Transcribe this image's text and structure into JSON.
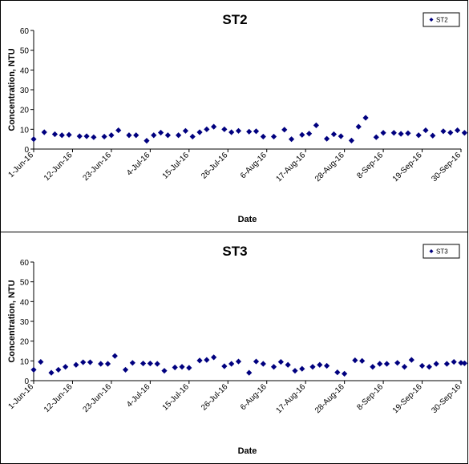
{
  "chart_data": [
    {
      "type": "scatter",
      "title": "ST2",
      "xlabel": "Date",
      "ylabel": "Concentration, NTU",
      "ylim": [
        0,
        60
      ],
      "yticks": [
        0,
        10,
        20,
        30,
        40,
        50,
        60
      ],
      "xlim": [
        "2016-06-01",
        "2016-09-30"
      ],
      "xtick_labels": [
        "1-Jun-16",
        "12-Jun-16",
        "23-Jun-16",
        "4-Jul-16",
        "15-Jul-16",
        "26-Jul-16",
        "6-Aug-16",
        "17-Aug-16",
        "28-Aug-16",
        "8-Sep-16",
        "19-Sep-16",
        "30-Sep-16"
      ],
      "xtick_dates": [
        "2016-06-01",
        "2016-06-12",
        "2016-06-23",
        "2016-07-04",
        "2016-07-15",
        "2016-07-26",
        "2016-08-06",
        "2016-08-17",
        "2016-08-28",
        "2016-09-08",
        "2016-09-19",
        "2016-09-30"
      ],
      "legend": "top-right",
      "grid": false,
      "marker_color": "#00007F",
      "series": [
        {
          "name": "ST2",
          "x": [
            "2016-06-01",
            "2016-06-04",
            "2016-06-07",
            "2016-06-09",
            "2016-06-11",
            "2016-06-14",
            "2016-06-16",
            "2016-06-18",
            "2016-06-21",
            "2016-06-23",
            "2016-06-25",
            "2016-06-28",
            "2016-06-30",
            "2016-07-03",
            "2016-07-05",
            "2016-07-07",
            "2016-07-09",
            "2016-07-12",
            "2016-07-14",
            "2016-07-16",
            "2016-07-18",
            "2016-07-20",
            "2016-07-22",
            "2016-07-25",
            "2016-07-27",
            "2016-07-29",
            "2016-08-01",
            "2016-08-03",
            "2016-08-05",
            "2016-08-08",
            "2016-08-11",
            "2016-08-13",
            "2016-08-16",
            "2016-08-18",
            "2016-08-20",
            "2016-08-23",
            "2016-08-25",
            "2016-08-27",
            "2016-08-30",
            "2016-09-01",
            "2016-09-03",
            "2016-09-06",
            "2016-09-08",
            "2016-09-11",
            "2016-09-13",
            "2016-09-15",
            "2016-09-18",
            "2016-09-20",
            "2016-09-22",
            "2016-09-25",
            "2016-09-27",
            "2016-09-29",
            "2016-10-01"
          ],
          "y": [
            5,
            8.5,
            7.5,
            7,
            7.2,
            6.5,
            6.5,
            6,
            6.3,
            7,
            9.5,
            7,
            7,
            4.2,
            7,
            8.3,
            7,
            7,
            9.2,
            6.3,
            8.5,
            10,
            11.3,
            10,
            8.5,
            9.2,
            8.8,
            9,
            6.3,
            6.3,
            9.8,
            5,
            7.2,
            7.8,
            12,
            5.2,
            7.5,
            6.5,
            4.3,
            11.3,
            15.8,
            6,
            8.2,
            8.2,
            7.7,
            8,
            7,
            9.5,
            6.8,
            9,
            8.3,
            9.5,
            8.2
          ]
        }
      ]
    },
    {
      "type": "scatter",
      "title": "ST3",
      "xlabel": "Date",
      "ylabel": "Concentration, NTU",
      "ylim": [
        0,
        60
      ],
      "yticks": [
        0,
        10,
        20,
        30,
        40,
        50,
        60
      ],
      "xlim": [
        "2016-06-01",
        "2016-09-30"
      ],
      "xtick_labels": [
        "1-Jun-16",
        "12-Jun-16",
        "23-Jun-16",
        "4-Jul-16",
        "15-Jul-16",
        "26-Jul-16",
        "6-Aug-16",
        "17-Aug-16",
        "28-Aug-16",
        "8-Sep-16",
        "19-Sep-16",
        "30-Sep-16"
      ],
      "xtick_dates": [
        "2016-06-01",
        "2016-06-12",
        "2016-06-23",
        "2016-07-04",
        "2016-07-15",
        "2016-07-26",
        "2016-08-06",
        "2016-08-17",
        "2016-08-28",
        "2016-09-08",
        "2016-09-19",
        "2016-09-30"
      ],
      "legend": "top-right",
      "grid": false,
      "marker_color": "#00007F",
      "series": [
        {
          "name": "ST3",
          "x": [
            "2016-06-01",
            "2016-06-03",
            "2016-06-06",
            "2016-06-08",
            "2016-06-10",
            "2016-06-13",
            "2016-06-15",
            "2016-06-17",
            "2016-06-20",
            "2016-06-22",
            "2016-06-24",
            "2016-06-27",
            "2016-06-29",
            "2016-07-02",
            "2016-07-04",
            "2016-07-06",
            "2016-07-08",
            "2016-07-11",
            "2016-07-13",
            "2016-07-15",
            "2016-07-18",
            "2016-07-20",
            "2016-07-22",
            "2016-07-25",
            "2016-07-27",
            "2016-07-29",
            "2016-08-01",
            "2016-08-03",
            "2016-08-05",
            "2016-08-08",
            "2016-08-10",
            "2016-08-12",
            "2016-08-14",
            "2016-08-16",
            "2016-08-19",
            "2016-08-21",
            "2016-08-23",
            "2016-08-26",
            "2016-08-28",
            "2016-08-31",
            "2016-09-02",
            "2016-09-05",
            "2016-09-07",
            "2016-09-09",
            "2016-09-12",
            "2016-09-14",
            "2016-09-16",
            "2016-09-19",
            "2016-09-21",
            "2016-09-23",
            "2016-09-26",
            "2016-09-28",
            "2016-09-30",
            "2016-10-01"
          ],
          "y": [
            5.5,
            9.5,
            4,
            5.5,
            7,
            8,
            9.3,
            9.3,
            8.5,
            8.5,
            12.5,
            5.5,
            9,
            8.7,
            8.7,
            8.5,
            5,
            6.7,
            7,
            6.5,
            10.2,
            10.5,
            11.8,
            7.3,
            8.5,
            9.7,
            4,
            9.7,
            8.5,
            7,
            9.5,
            8,
            5,
            6,
            7,
            8,
            7.5,
            4.2,
            3.5,
            10.3,
            10,
            7,
            8.5,
            8.5,
            9,
            7,
            10.5,
            7.5,
            7,
            8.5,
            8.5,
            9.5,
            9,
            8.8
          ]
        }
      ]
    }
  ]
}
